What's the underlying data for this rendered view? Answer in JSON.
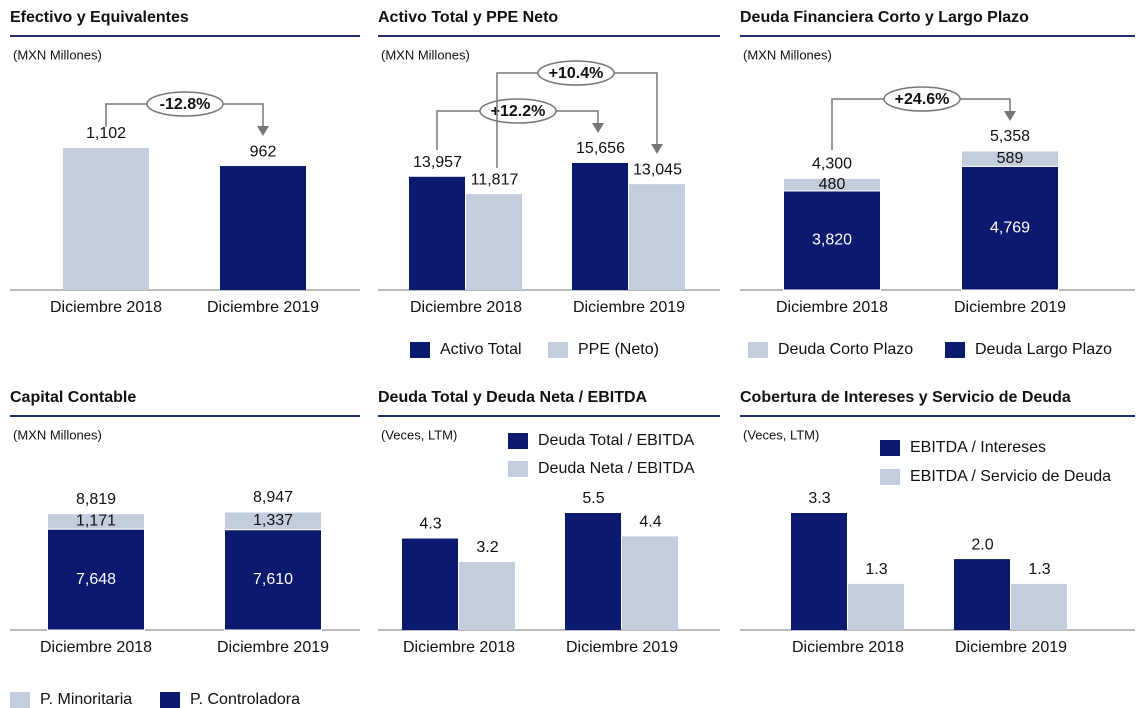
{
  "chart_data": [
    {
      "type": "bar",
      "title": "Efectivo y Equivalentes",
      "subtitle": "(MXN Millones)",
      "categories": [
        "Diciembre 2018",
        "Diciembre 2019"
      ],
      "values": [
        1102,
        962
      ],
      "value_labels": [
        "1,102",
        "962"
      ],
      "colors": [
        "#c3cddd",
        "#0b1a6e"
      ],
      "annotations": [
        "-12.8%"
      ]
    },
    {
      "type": "grouped_bar",
      "title": "Activo Total y PPE Neto",
      "subtitle": "(MXN Millones)",
      "categories": [
        "Diciembre 2018",
        "Diciembre 2019"
      ],
      "series": [
        {
          "name": "Activo Total",
          "color": "#0b1a6e",
          "values": [
            13957,
            15656
          ],
          "value_labels": [
            "13,957",
            "15,656"
          ]
        },
        {
          "name": "PPE (Neto)",
          "color": "#c3cddd",
          "values": [
            11817,
            13045
          ],
          "value_labels": [
            "11,817",
            "13,045"
          ]
        }
      ],
      "annotations": [
        "+12.2%",
        "+10.4%"
      ]
    },
    {
      "type": "stacked_bar",
      "title": "Deuda Financiera  Corto y Largo Plazo",
      "subtitle": "(MXN Millones)",
      "categories": [
        "Diciembre 2018",
        "Diciembre 2019"
      ],
      "series": [
        {
          "name": "Deuda Largo Plazo",
          "color": "#0b1a6e",
          "values": [
            3820,
            4769
          ],
          "value_labels": [
            "3,820",
            "4,769"
          ]
        },
        {
          "name": "Deuda Corto Plazo",
          "color": "#c3cddd",
          "values": [
            480,
            589
          ]
        }
      ],
      "totals": [
        4300,
        5358
      ],
      "total_labels": [
        "4,300",
        "5,358"
      ],
      "annotations": [
        "+24.6%"
      ]
    },
    {
      "type": "stacked_bar",
      "title": "Capital  Contable",
      "subtitle": "(MXN Millones)",
      "categories": [
        "Diciembre 2018",
        "Diciembre 2019"
      ],
      "series": [
        {
          "name": "P. Controladora",
          "color": "#0b1a6e",
          "values": [
            7648,
            7610
          ],
          "value_labels": [
            "7,648",
            "7,610"
          ]
        },
        {
          "name": "P. Minoritaria",
          "color": "#c3cddd",
          "values": [
            1171,
            1337
          ],
          "value_labels": [
            "1,171",
            "1,337"
          ]
        }
      ],
      "totals": [
        8819,
        8947
      ],
      "total_labels": [
        "8,819",
        "8,947"
      ],
      "annotations": []
    },
    {
      "type": "grouped_bar",
      "title": "Deuda  Total y Deuda Neta / EBITDA",
      "subtitle": "(Veces, LTM)",
      "categories": [
        "Diciembre 2018",
        "Diciembre 2019"
      ],
      "series": [
        {
          "name": "Deuda Total / EBITDA",
          "color": "#0b1a6e",
          "values": [
            4.3,
            5.5
          ]
        },
        {
          "name": "Deuda Neta / EBITDA",
          "color": "#c3cddd",
          "values": [
            3.2,
            4.4
          ]
        }
      ],
      "annotations": []
    },
    {
      "type": "grouped_bar",
      "title": "Cobertura  de Intereses y Servicio  de Deuda",
      "subtitle": "(Veces, LTM)",
      "categories": [
        "Diciembre 2018",
        "Diciembre 2019"
      ],
      "series": [
        {
          "name": "EBITDA / Intereses",
          "color": "#0b1a6e",
          "values": [
            3.3,
            2.0
          ],
          "value_labels": [
            "3.3",
            "2.0"
          ]
        },
        {
          "name": "EBITDA / Servicio de Deuda",
          "color": "#c3cddd",
          "values": [
            1.3,
            1.3
          ]
        }
      ],
      "annotations": []
    }
  ]
}
